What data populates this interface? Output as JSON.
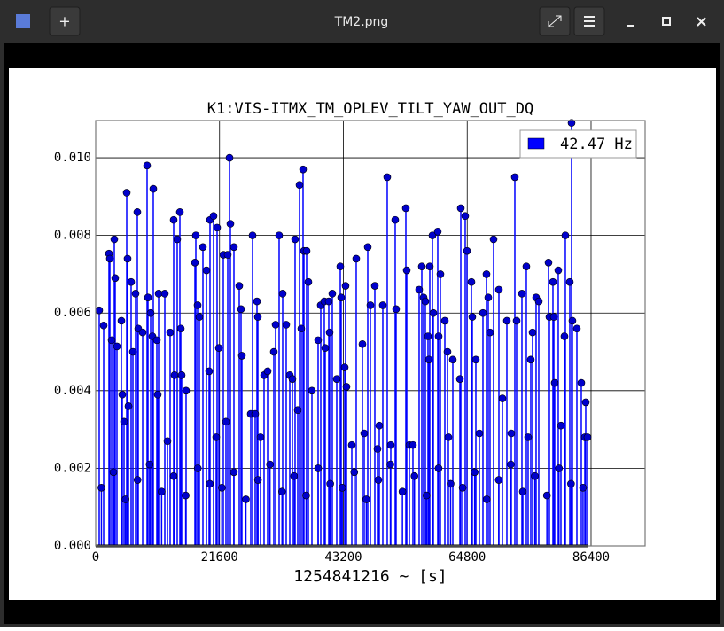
{
  "window": {
    "title": "TM2.png"
  },
  "chart_data": {
    "type": "stem",
    "title": "K1:VIS-ITMX_TM_OPLEV_TILT_YAW_OUT_DQ",
    "xlabel": "1254841216 ~ [s]",
    "xlim": [
      0,
      95830
    ],
    "ylim": [
      0,
      0.01096
    ],
    "xticks": [
      0,
      21600,
      43200,
      64800,
      86400
    ],
    "yticks": [
      {
        "value": 0,
        "label": "0.000"
      },
      {
        "value": 0.002,
        "label": "0.002"
      },
      {
        "value": 0.004,
        "label": "0.004"
      },
      {
        "value": 0.006,
        "label": "0.006"
      },
      {
        "value": 0.008,
        "label": "0.008"
      },
      {
        "value": 0.01,
        "label": "0.010"
      }
    ],
    "grid": true,
    "legend": "upper right",
    "series": [
      {
        "name": "42.47 Hz",
        "color": "#0000ff",
        "marker_color": "#0000cc",
        "x": [
          618,
          1391,
          2318,
          2473,
          2782,
          3246,
          3400,
          3709,
          4482,
          4637,
          4946,
          5410,
          5560,
          5719,
          6182,
          6492,
          6955,
          7264,
          7419,
          8192,
          8965,
          9120,
          9583,
          9892,
          10046,
          10665,
          10819,
          10974,
          12056,
          12520,
          12983,
          13601,
          13756,
          14220,
          14683,
          14840,
          14992,
          15765,
          17310,
          17465,
          17774,
          18084,
          18702,
          19320,
          19784,
          19938,
          20556,
          21020,
          21175,
          21484,
          22257,
          22720,
          23029,
          23339,
          23493,
          24111,
          25039,
          25348,
          25500,
          27048,
          27358,
          27821,
          28130,
          28284,
          28748,
          29366,
          29985,
          31066,
          31375,
          31994,
          32612,
          33230,
          33848,
          34312,
          34776,
          35240,
          35549,
          35858,
          36167,
          36320,
          36785,
          37094,
          37713,
          38795,
          39258,
          39876,
          40031,
          40649,
          40800,
          41267,
          42040,
          42659,
          42813,
          43431,
          43580,
          43740,
          44668,
          45441,
          46523,
          46832,
          47450,
          47914,
          48686,
          49150,
          49460,
          50077,
          50850,
          51468,
          52241,
          52395,
          54096,
          54250,
          54714,
          55332,
          56414,
          56878,
          57187,
          57496,
          57960,
          58115,
          58269,
          58733,
          58887,
          59660,
          59815,
          60124,
          60897,
          61360,
          61515,
          62288,
          63525,
          63680,
          64452,
          64761,
          65534,
          65688,
          66306,
          66924,
          67543,
          68161,
          68470,
          68779,
          69398,
          70325,
          70943,
          71716,
          72489,
          73107,
          73416,
          74344,
          75116,
          75425,
          75889,
          76198,
          76816,
          77280,
          78980,
          79135,
          79753,
          79908,
          80060,
          80680,
          81144,
          81762,
          81917,
          82690,
          82999,
          83150,
          83927,
          84700,
          85318,
          85472,
          85782,
          1000,
          3100,
          5200,
          7300,
          9400,
          11500,
          13600,
          15700,
          17800,
          19900,
          22000,
          24100,
          26200,
          28300,
          30400,
          32500,
          34600,
          36700,
          38800,
          40900,
          43000,
          45100,
          47200,
          49300,
          51400,
          53500,
          55600,
          57700,
          59800,
          61900,
          64000,
          66100,
          68200,
          70300,
          72400,
          74500,
          76600,
          78700,
          80800,
          82900,
          85000
        ],
        "values": [
          0.00607,
          0.00568,
          0.00753,
          0.0074,
          0.0053,
          0.0079,
          0.0069,
          0.00514,
          0.0058,
          0.0039,
          0.0032,
          0.0091,
          0.0074,
          0.0036,
          0.0068,
          0.005,
          0.0065,
          0.0086,
          0.0056,
          0.0055,
          0.0098,
          0.0064,
          0.006,
          0.0054,
          0.0092,
          0.0053,
          0.0039,
          0.0065,
          0.0065,
          0.0027,
          0.0055,
          0.0084,
          0.0044,
          0.0079,
          0.0086,
          0.0056,
          0.0044,
          0.004,
          0.0073,
          0.008,
          0.0062,
          0.0059,
          0.0077,
          0.0071,
          0.0045,
          0.0084,
          0.0085,
          0.0028,
          0.0082,
          0.0051,
          0.0075,
          0.0032,
          0.0075,
          0.01,
          0.0083,
          0.0077,
          0.0067,
          0.0061,
          0.0049,
          0.0034,
          0.008,
          0.0034,
          0.0063,
          0.0059,
          0.0028,
          0.0044,
          0.0045,
          0.005,
          0.0057,
          0.008,
          0.0065,
          0.0057,
          0.0044,
          0.0043,
          0.0079,
          0.0035,
          0.0093,
          0.0056,
          0.0097,
          0.0076,
          0.0076,
          0.0068,
          0.004,
          0.0053,
          0.0062,
          0.0063,
          0.0051,
          0.0063,
          0.0055,
          0.0065,
          0.0043,
          0.0072,
          0.0064,
          0.0046,
          0.0067,
          0.0041,
          0.0026,
          0.0074,
          0.0052,
          0.0029,
          0.0077,
          0.0062,
          0.0067,
          0.0025,
          0.0031,
          0.0062,
          0.0095,
          0.0026,
          0.0084,
          0.0061,
          0.0087,
          0.0071,
          0.0026,
          0.0026,
          0.0066,
          0.0072,
          0.0064,
          0.0063,
          0.0054,
          0.0048,
          0.0072,
          0.008,
          0.006,
          0.0081,
          0.0054,
          0.007,
          0.0058,
          0.005,
          0.0028,
          0.0048,
          0.0043,
          0.0087,
          0.0085,
          0.0076,
          0.0068,
          0.0059,
          0.0048,
          0.0029,
          0.006,
          0.007,
          0.0064,
          0.0055,
          0.0079,
          0.0066,
          0.0038,
          0.0058,
          0.0029,
          0.0095,
          0.0058,
          0.0065,
          0.0072,
          0.0028,
          0.0048,
          0.0055,
          0.0064,
          0.0063,
          0.0073,
          0.0059,
          0.0068,
          0.0059,
          0.0042,
          0.0071,
          0.0031,
          0.0054,
          0.008,
          0.0068,
          0.0109,
          0.0058,
          0.0056,
          0.0042,
          0.0028,
          0.0037,
          0.0028,
          0.0015,
          0.0019,
          0.0012,
          0.0017,
          0.0021,
          0.0014,
          0.0018,
          0.0013,
          0.002,
          0.0016,
          0.0015,
          0.0019,
          0.0012,
          0.0017,
          0.0021,
          0.0014,
          0.0018,
          0.0013,
          0.002,
          0.0016,
          0.0015,
          0.0019,
          0.0012,
          0.0017,
          0.0021,
          0.0014,
          0.0018,
          0.0013,
          0.002,
          0.0016,
          0.0015,
          0.0019,
          0.0012,
          0.0017,
          0.0021,
          0.0014,
          0.0018,
          0.0013,
          0.002,
          0.0016,
          0.0015
        ]
      }
    ]
  }
}
